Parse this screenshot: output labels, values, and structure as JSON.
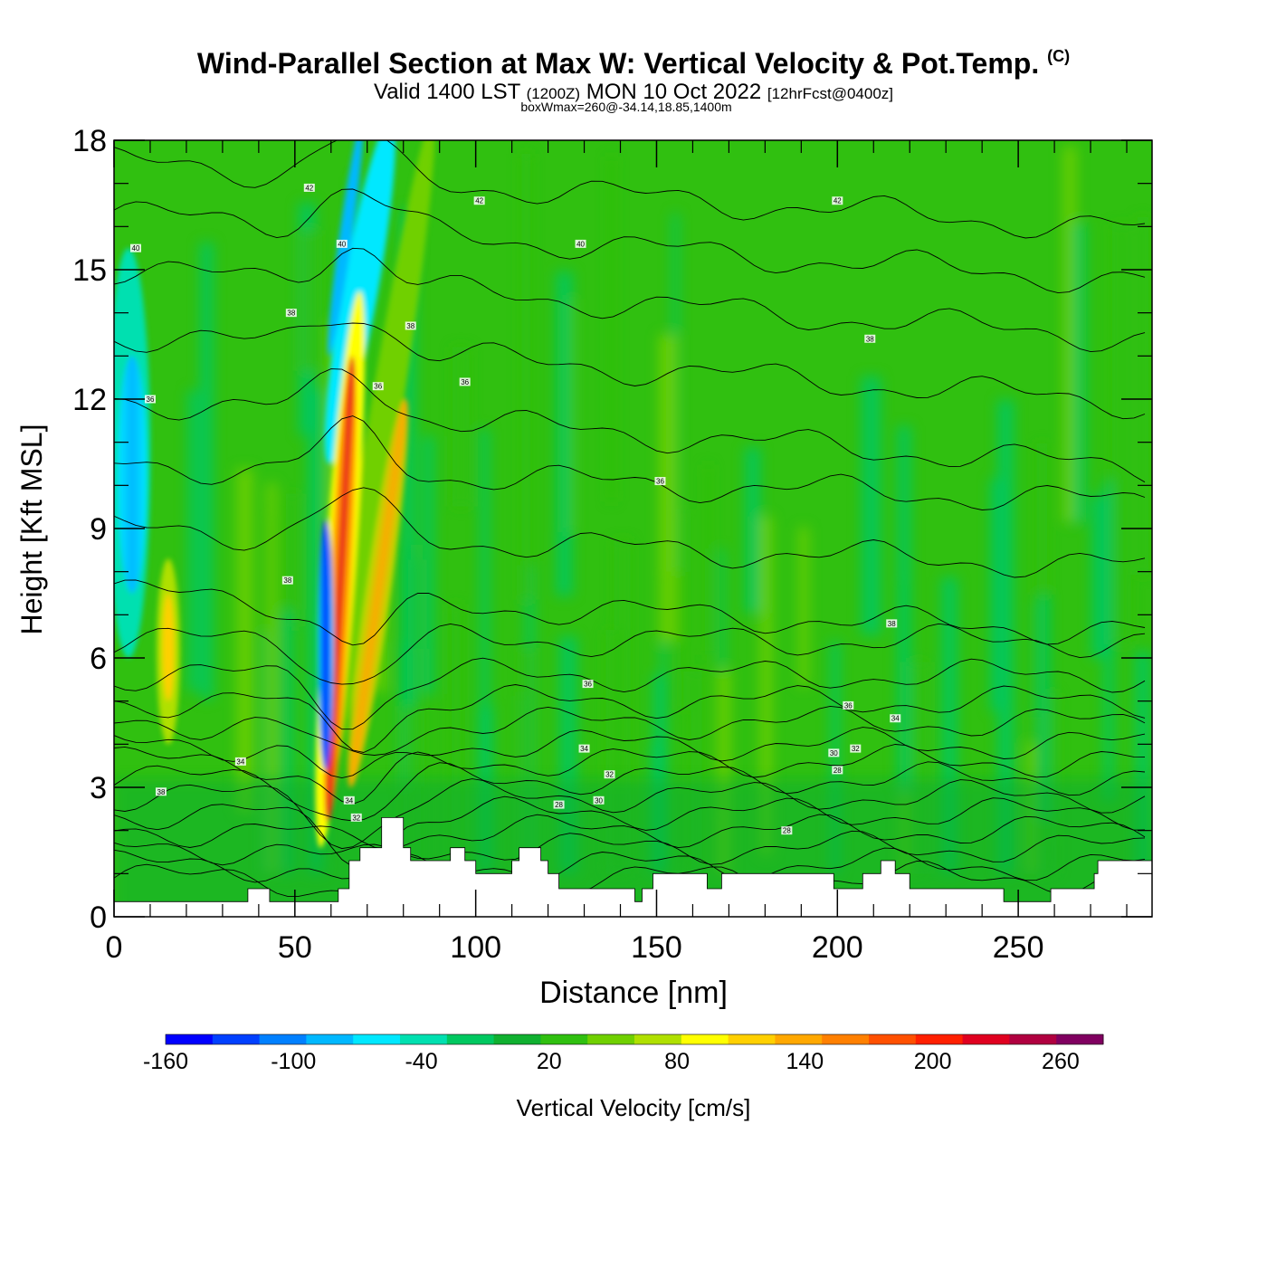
{
  "titles": {
    "main": "Wind-Parallel Section at Max W: Vertical Velocity & Pot.Temp.",
    "copyright": "(C)",
    "valid_prefix": "Valid 1400 LST",
    "utc": "(1200Z)",
    "valid_date": "MON 10 Oct 2022",
    "forecast": "[12hrFcst@0400z]",
    "box": "boxWmax=260@-34.14,18.85,1400m"
  },
  "chart_data": {
    "type": "heatmap",
    "xlabel": "Distance [nm]",
    "ylabel": "Height [Kft MSL]",
    "xlim": [
      0,
      287
    ],
    "ylim": [
      0,
      18
    ],
    "x_ticks": [
      "0",
      "50",
      "100",
      "150",
      "200",
      "250"
    ],
    "y_ticks": [
      "0",
      "3",
      "6",
      "9",
      "12",
      "15",
      "18"
    ],
    "colorbar": {
      "label": "Vertical Velocity [cm/s]",
      "min": -160,
      "max": 280,
      "step": 20,
      "tick_labels": [
        "-160",
        "-100",
        "-40",
        "20",
        "80",
        "140",
        "200",
        "260"
      ],
      "colors": [
        "#0000ff",
        "#0040ff",
        "#0080ff",
        "#00b8ff",
        "#00e8ff",
        "#00e0b0",
        "#00c860",
        "#10b030",
        "#30c010",
        "#70d000",
        "#b0e000",
        "#ffff00",
        "#ffd000",
        "#ffa800",
        "#ff8000",
        "#ff5000",
        "#ff2000",
        "#e00020",
        "#b00040",
        "#800060"
      ]
    },
    "field_background_w": 10,
    "features": [
      {
        "name": "updraft-core-main",
        "x": 63,
        "y_top": 13.5,
        "y_bottom": 2.2,
        "max_w": 260
      },
      {
        "name": "updraft-core-secondary",
        "x": 72,
        "y_top": 17.5,
        "y_bottom": 2.8,
        "max_w": 160
      },
      {
        "name": "downdraft-core",
        "x": 59,
        "y_top": 9,
        "y_bottom": 3.5,
        "min_w": -160
      },
      {
        "name": "downdraft-upper",
        "x": 68,
        "y_top": 18,
        "y_bottom": 11,
        "min_w": -80
      },
      {
        "name": "downdraft-west",
        "x": 6,
        "y_top": 14,
        "y_bottom": 7,
        "min_w": -100
      },
      {
        "name": "updraft-west",
        "x": 15,
        "y_top": 8,
        "y_bottom": 4.5,
        "max_w": 110
      }
    ],
    "theta_labels": [
      {
        "x": 6,
        "y": 15.5,
        "text": "40"
      },
      {
        "x": 54,
        "y": 16.9,
        "text": "42"
      },
      {
        "x": 63,
        "y": 15.6,
        "text": "40"
      },
      {
        "x": 101,
        "y": 16.6,
        "text": "42"
      },
      {
        "x": 129,
        "y": 15.6,
        "text": "40"
      },
      {
        "x": 200,
        "y": 16.6,
        "text": "42"
      },
      {
        "x": 49,
        "y": 14.0,
        "text": "38"
      },
      {
        "x": 82,
        "y": 13.7,
        "text": "38"
      },
      {
        "x": 10,
        "y": 12.0,
        "text": "36"
      },
      {
        "x": 97,
        "y": 12.4,
        "text": "36"
      },
      {
        "x": 73,
        "y": 12.3,
        "text": "36"
      },
      {
        "x": 209,
        "y": 13.4,
        "text": "38"
      },
      {
        "x": 151,
        "y": 10.1,
        "text": "36"
      },
      {
        "x": 48,
        "y": 7.8,
        "text": "38"
      },
      {
        "x": 215,
        "y": 6.8,
        "text": "38"
      },
      {
        "x": 131,
        "y": 5.4,
        "text": "36"
      },
      {
        "x": 203,
        "y": 4.9,
        "text": "36"
      },
      {
        "x": 216,
        "y": 4.6,
        "text": "34"
      },
      {
        "x": 13,
        "y": 2.9,
        "text": "38"
      },
      {
        "x": 35,
        "y": 3.6,
        "text": "34"
      },
      {
        "x": 130,
        "y": 3.9,
        "text": "34"
      },
      {
        "x": 137,
        "y": 3.3,
        "text": "32"
      },
      {
        "x": 199,
        "y": 3.8,
        "text": "30"
      },
      {
        "x": 205,
        "y": 3.9,
        "text": "32"
      },
      {
        "x": 200,
        "y": 3.4,
        "text": "28"
      },
      {
        "x": 65,
        "y": 2.7,
        "text": "34"
      },
      {
        "x": 67,
        "y": 2.3,
        "text": "32"
      },
      {
        "x": 123,
        "y": 2.6,
        "text": "28"
      },
      {
        "x": 134,
        "y": 2.7,
        "text": "30"
      },
      {
        "x": 186,
        "y": 2.0,
        "text": "28"
      }
    ],
    "terrain": [
      [
        0,
        0.35
      ],
      [
        37,
        0.35
      ],
      [
        37,
        0.65
      ],
      [
        43,
        0.65
      ],
      [
        43,
        0.35
      ],
      [
        62,
        0.35
      ],
      [
        62,
        0.65
      ],
      [
        65,
        0.65
      ],
      [
        65,
        1.3
      ],
      [
        68,
        1.3
      ],
      [
        68,
        1.6
      ],
      [
        74,
        1.6
      ],
      [
        74,
        2.3
      ],
      [
        80,
        2.3
      ],
      [
        80,
        1.6
      ],
      [
        82,
        1.6
      ],
      [
        82,
        1.3
      ],
      [
        93,
        1.3
      ],
      [
        93,
        1.6
      ],
      [
        97,
        1.6
      ],
      [
        97,
        1.3
      ],
      [
        100,
        1.3
      ],
      [
        100,
        1.0
      ],
      [
        110,
        1.0
      ],
      [
        110,
        1.3
      ],
      [
        112,
        1.3
      ],
      [
        112,
        1.6
      ],
      [
        118,
        1.6
      ],
      [
        118,
        1.3
      ],
      [
        120,
        1.3
      ],
      [
        120,
        1.0
      ],
      [
        123,
        1.0
      ],
      [
        123,
        0.65
      ],
      [
        144,
        0.65
      ],
      [
        144,
        0.35
      ],
      [
        146,
        0.35
      ],
      [
        146,
        0.65
      ],
      [
        149,
        0.65
      ],
      [
        149,
        1.0
      ],
      [
        164,
        1.0
      ],
      [
        164,
        0.65
      ],
      [
        168,
        0.65
      ],
      [
        168,
        1.0
      ],
      [
        199,
        1.0
      ],
      [
        199,
        0.65
      ],
      [
        207,
        0.65
      ],
      [
        207,
        1.0
      ],
      [
        212,
        1.0
      ],
      [
        212,
        1.3
      ],
      [
        216,
        1.3
      ],
      [
        216,
        1.0
      ],
      [
        220,
        1.0
      ],
      [
        220,
        0.65
      ],
      [
        246,
        0.65
      ],
      [
        246,
        0.35
      ],
      [
        259,
        0.35
      ],
      [
        259,
        0.65
      ],
      [
        271,
        0.65
      ],
      [
        271,
        1.0
      ],
      [
        272,
        1.0
      ],
      [
        272,
        1.3
      ],
      [
        287,
        1.3
      ]
    ]
  }
}
